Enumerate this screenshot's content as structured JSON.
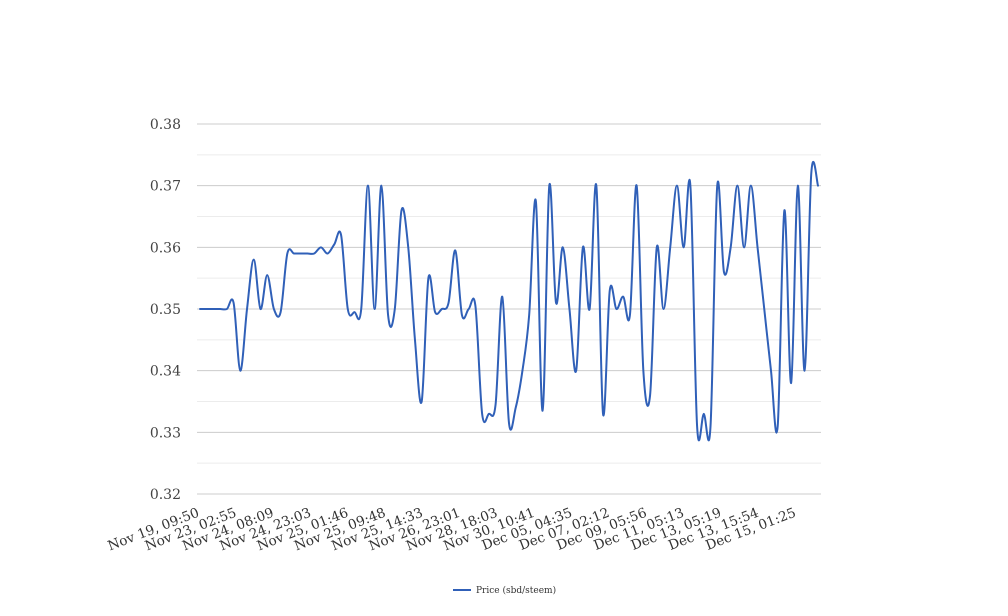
{
  "chart_data": {
    "type": "line",
    "title": "",
    "xlabel": "",
    "ylabel": "",
    "ylim": [
      0.32,
      0.38
    ],
    "yticks": [
      "0.32",
      "0.33",
      "0.34",
      "0.35",
      "0.36",
      "0.37",
      "0.38"
    ],
    "x_tick_labels": [
      "Nov 19, 09:50",
      "Nov 23, 02:55",
      "Nov 24, 08:09",
      "Nov 24, 23:03",
      "Nov 25, 01:46",
      "Nov 25, 09:48",
      "Nov 25, 14:33",
      "Nov 26, 23:01",
      "Nov 28, 18:03",
      "Nov 30, 10:41",
      "Dec 05, 04:35",
      "Dec 07, 02:12",
      "Dec 09, 05:56",
      "Dec 11, 05:13",
      "Dec 13, 05:19",
      "Dec 13, 15:54",
      "Dec 15, 01:25"
    ],
    "grid": true,
    "minor_grid": true,
    "legend_position": "bottom-center",
    "series": [
      {
        "name": "Price (sbd/steem)",
        "color": "#3060b8",
        "values": [
          0.35,
          0.35,
          0.35,
          0.35,
          0.35,
          0.351,
          0.34,
          0.35,
          0.358,
          0.35,
          0.3555,
          0.35,
          0.3495,
          0.359,
          0.359,
          0.359,
          0.359,
          0.359,
          0.36,
          0.359,
          0.3605,
          0.362,
          0.35,
          0.3495,
          0.35,
          0.37,
          0.35,
          0.37,
          0.349,
          0.35,
          0.366,
          0.36,
          0.345,
          0.335,
          0.355,
          0.3495,
          0.35,
          0.351,
          0.3595,
          0.349,
          0.35,
          0.3505,
          0.333,
          0.333,
          0.3345,
          0.352,
          0.3315,
          0.334,
          0.34,
          0.349,
          0.3675,
          0.3335,
          0.37,
          0.351,
          0.36,
          0.35,
          0.34,
          0.36,
          0.35,
          0.37,
          0.333,
          0.353,
          0.35,
          0.352,
          0.349,
          0.37,
          0.34,
          0.336,
          0.36,
          0.35,
          0.36,
          0.37,
          0.36,
          0.37,
          0.331,
          0.333,
          0.331,
          0.37,
          0.356,
          0.36,
          0.37,
          0.36,
          0.37,
          0.36,
          0.35,
          0.34,
          0.331,
          0.366,
          0.338,
          0.37,
          0.34,
          0.372,
          0.37
        ]
      }
    ]
  }
}
